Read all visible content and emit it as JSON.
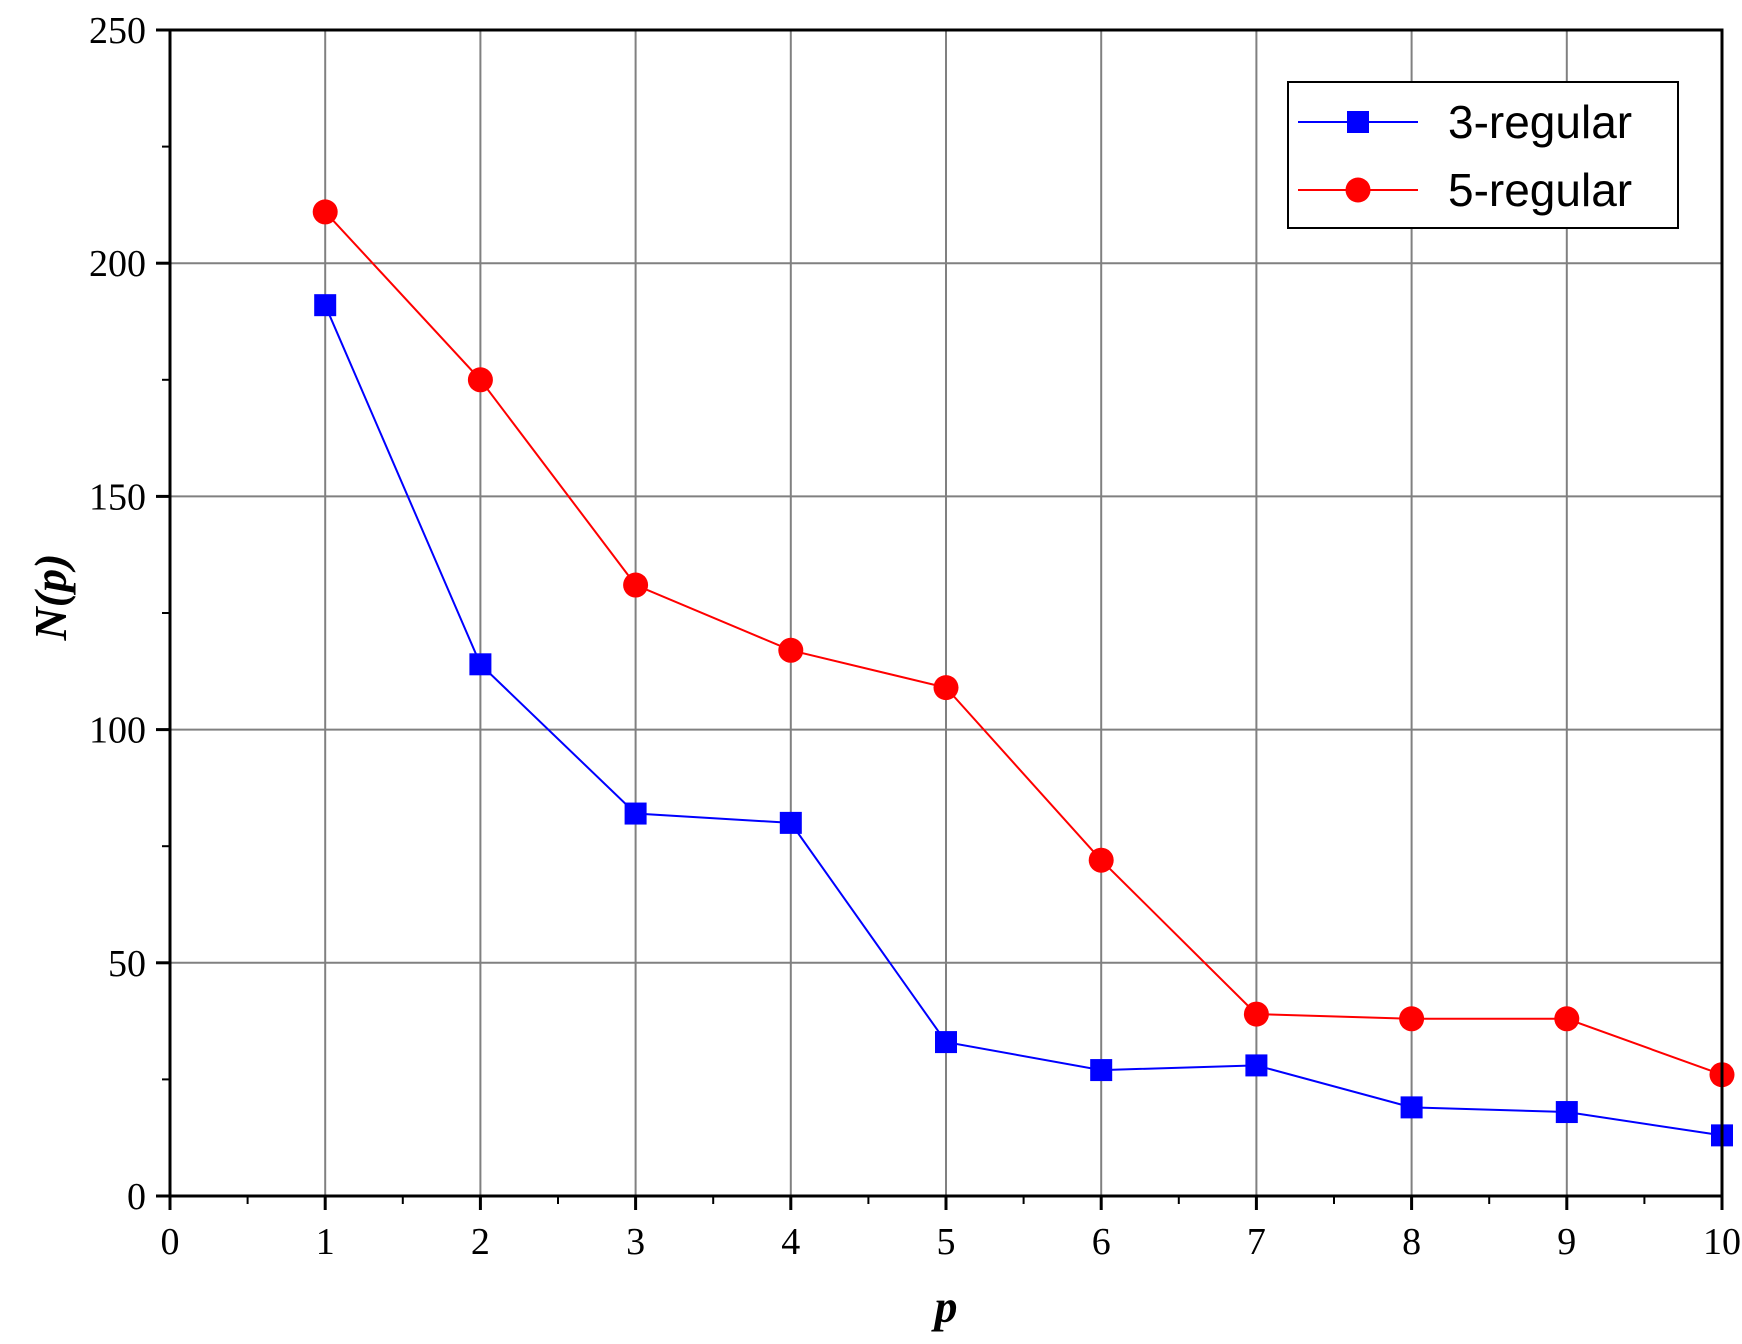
{
  "chart_data": {
    "type": "line",
    "title": "",
    "xlabel": "p",
    "ylabel": "N(p)",
    "xlim": [
      0,
      10
    ],
    "ylim": [
      0,
      250
    ],
    "x_ticks": [
      "0",
      "1",
      "2",
      "3",
      "4",
      "5",
      "6",
      "7",
      "8",
      "9",
      "10"
    ],
    "y_ticks": [
      "0",
      "50",
      "100",
      "150",
      "200",
      "250"
    ],
    "grid": true,
    "legend_position": "top-right",
    "x": [
      1,
      2,
      3,
      4,
      5,
      6,
      7,
      8,
      9,
      10
    ],
    "series": [
      {
        "name": "3-regular",
        "color": "#0000ff",
        "marker": "square",
        "values": [
          191,
          114,
          82,
          80,
          33,
          27,
          28,
          19,
          18,
          13
        ]
      },
      {
        "name": "5-regular",
        "color": "#ff0000",
        "marker": "circle",
        "values": [
          211,
          175,
          131,
          117,
          109,
          72,
          39,
          38,
          38,
          26
        ]
      }
    ]
  }
}
